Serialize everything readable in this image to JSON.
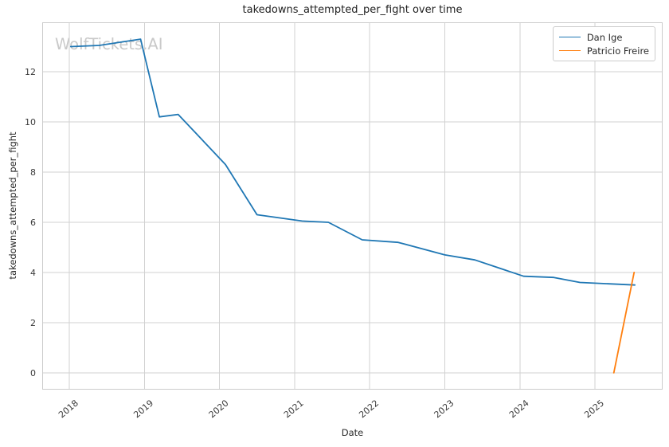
{
  "watermark": "WolfTickets.AI",
  "chart_data": {
    "type": "line",
    "title": "takedowns_attempted_per_fight over time",
    "xlabel": "Date",
    "ylabel": "takedowns_attempted_per_fight",
    "x_ticks": [
      2018,
      2019,
      2020,
      2021,
      2022,
      2023,
      2024,
      2025
    ],
    "y_ticks": [
      0,
      2,
      4,
      6,
      8,
      10,
      12
    ],
    "xlim": [
      2017.64,
      2025.9
    ],
    "ylim": [
      -0.67,
      13.97
    ],
    "grid": true,
    "legend_position": "upper right",
    "series": [
      {
        "name": "Dan Ige",
        "color": "#1f77b4",
        "x": [
          2018.02,
          2018.4,
          2018.95,
          2019.2,
          2019.45,
          2020.08,
          2020.5,
          2021.1,
          2021.45,
          2021.9,
          2022.38,
          2023.0,
          2023.4,
          2024.05,
          2024.45,
          2024.8,
          2025.53
        ],
        "y": [
          13.0,
          13.05,
          13.3,
          10.2,
          10.3,
          8.3,
          6.3,
          6.05,
          6.0,
          5.3,
          5.2,
          4.7,
          4.5,
          3.85,
          3.8,
          3.6,
          3.5
        ]
      },
      {
        "name": "Patricio Freire",
        "color": "#ff7f0e",
        "x": [
          2025.25,
          2025.52
        ],
        "y": [
          0.0,
          4.0
        ]
      }
    ]
  },
  "colors": {
    "grid": "#d2d2d2",
    "spine": "#cccccc",
    "tick_text": "#3a3a3a",
    "label_text": "#2b2b2b",
    "watermark": "#c9c9c9",
    "background": "#ffffff"
  }
}
